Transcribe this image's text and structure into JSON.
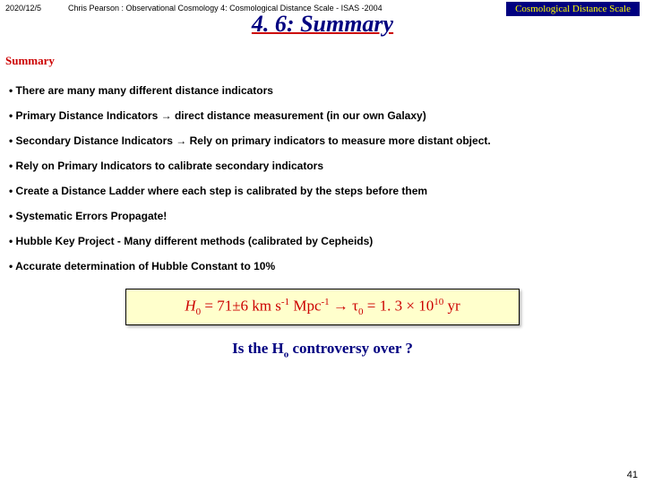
{
  "header": {
    "date": "2020/12/5",
    "author": "Chris Pearson :  Observational Cosmology 4: Cosmological Distance Scale - ISAS -2004",
    "topic_label": "Cosmological Distance Scale"
  },
  "title": "4. 6:  Summary",
  "section_head": "Summary",
  "bullets": [
    "There are many many different distance indicators",
    "Primary Distance Indicators → direct distance measurement (in our own Galaxy)",
    "Secondary Distance Indicators → Rely on primary indicators to measure more distant object.",
    "Rely on Primary Indicators to calibrate secondary indicators",
    "Create a Distance Ladder where each step is calibrated by the steps before them",
    "Systematic Errors Propagate!",
    "Hubble Key Project - Many different methods (calibrated by Cepheids)",
    "Accurate determination of Hubble Constant to 10%"
  ],
  "formula": {
    "H_label": "H",
    "H_sub": "0",
    "eq": " = 71±6 km s",
    "sup1": "-1",
    "mid": " Mpc",
    "sup2": "-1",
    "arrow": " → τ",
    "t_sub": "0",
    "eq2": " = 1. 3 × 10",
    "sup3": "10",
    "tail": " yr"
  },
  "question": {
    "pre": "Is the H",
    "sub": "o",
    "post": " controversy over ?"
  },
  "pagenum": "41",
  "colors": {
    "title_color": "#000080",
    "underline_color": "#cc0000",
    "section_color": "#cc0000",
    "topic_bg": "#000080",
    "topic_fg": "#ffff00",
    "formula_bg": "#ffffcc",
    "formula_fg": "#cc0000",
    "question_color": "#000080"
  }
}
